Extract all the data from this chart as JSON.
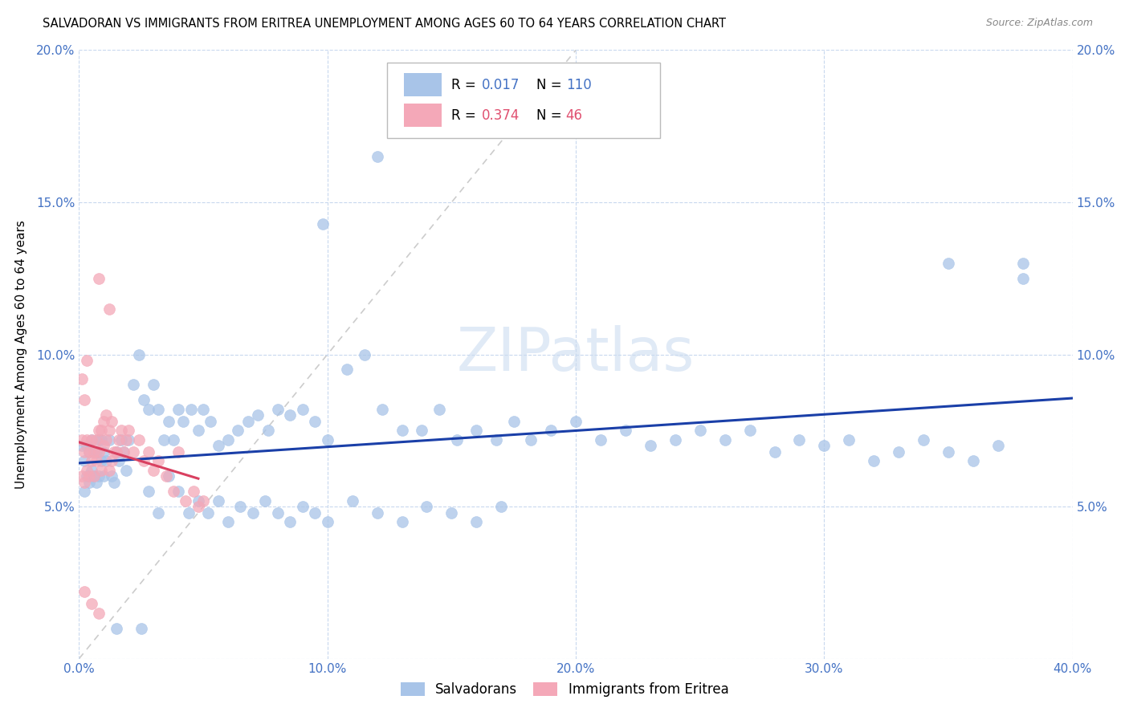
{
  "title": "SALVADORAN VS IMMIGRANTS FROM ERITREA UNEMPLOYMENT AMONG AGES 60 TO 64 YEARS CORRELATION CHART",
  "source": "Source: ZipAtlas.com",
  "ylabel": "Unemployment Among Ages 60 to 64 years",
  "xlim": [
    0.0,
    0.4
  ],
  "ylim": [
    0.0,
    0.2
  ],
  "xtick_vals": [
    0.0,
    0.1,
    0.2,
    0.3,
    0.4
  ],
  "xtick_labels": [
    "0.0%",
    "10.0%",
    "20.0%",
    "30.0%",
    "40.0%"
  ],
  "ytick_vals": [
    0.0,
    0.05,
    0.1,
    0.15,
    0.2
  ],
  "ytick_labels": [
    "",
    "5.0%",
    "10.0%",
    "15.0%",
    "20.0%"
  ],
  "salvadoran_color": "#a8c4e8",
  "eritrea_color": "#f4a8b8",
  "trend_blue_color": "#1a3fa8",
  "trend_pink_color": "#d94060",
  "diagonal_color": "#cccccc",
  "R_salvadoran": 0.017,
  "N_salvadoran": 110,
  "R_eritrea": 0.374,
  "N_eritrea": 46,
  "watermark": "ZIPatlas",
  "tick_color": "#4472c4",
  "grid_color": "#c8d8ee",
  "sal_x": [
    0.001,
    0.002,
    0.002,
    0.003,
    0.003,
    0.004,
    0.004,
    0.005,
    0.005,
    0.006,
    0.006,
    0.007,
    0.007,
    0.008,
    0.008,
    0.009,
    0.009,
    0.01,
    0.01,
    0.011,
    0.012,
    0.013,
    0.014,
    0.015,
    0.016,
    0.017,
    0.018,
    0.019,
    0.02,
    0.022,
    0.024,
    0.026,
    0.028,
    0.03,
    0.032,
    0.034,
    0.036,
    0.038,
    0.04,
    0.042,
    0.045,
    0.048,
    0.05,
    0.053,
    0.056,
    0.06,
    0.064,
    0.068,
    0.072,
    0.076,
    0.08,
    0.085,
    0.09,
    0.095,
    0.1,
    0.108,
    0.115,
    0.122,
    0.13,
    0.138,
    0.145,
    0.152,
    0.16,
    0.168,
    0.175,
    0.182,
    0.19,
    0.2,
    0.21,
    0.22,
    0.23,
    0.24,
    0.25,
    0.26,
    0.27,
    0.28,
    0.29,
    0.3,
    0.31,
    0.32,
    0.33,
    0.34,
    0.35,
    0.36,
    0.37,
    0.38,
    0.028,
    0.032,
    0.036,
    0.04,
    0.044,
    0.048,
    0.052,
    0.056,
    0.06,
    0.065,
    0.07,
    0.075,
    0.08,
    0.085,
    0.09,
    0.095,
    0.1,
    0.11,
    0.12,
    0.13,
    0.14,
    0.15,
    0.16,
    0.17
  ],
  "sal_y": [
    0.07,
    0.055,
    0.065,
    0.06,
    0.07,
    0.058,
    0.068,
    0.062,
    0.072,
    0.06,
    0.068,
    0.058,
    0.068,
    0.06,
    0.072,
    0.065,
    0.072,
    0.06,
    0.068,
    0.065,
    0.072,
    0.06,
    0.058,
    0.068,
    0.065,
    0.072,
    0.068,
    0.062,
    0.072,
    0.09,
    0.1,
    0.085,
    0.082,
    0.09,
    0.082,
    0.072,
    0.078,
    0.072,
    0.082,
    0.078,
    0.082,
    0.075,
    0.082,
    0.078,
    0.07,
    0.072,
    0.075,
    0.078,
    0.08,
    0.075,
    0.082,
    0.08,
    0.082,
    0.078,
    0.072,
    0.095,
    0.1,
    0.082,
    0.075,
    0.075,
    0.082,
    0.072,
    0.075,
    0.072,
    0.078,
    0.072,
    0.075,
    0.078,
    0.072,
    0.075,
    0.07,
    0.072,
    0.075,
    0.072,
    0.075,
    0.068,
    0.072,
    0.07,
    0.072,
    0.065,
    0.068,
    0.072,
    0.068,
    0.065,
    0.07,
    0.125,
    0.055,
    0.048,
    0.06,
    0.055,
    0.048,
    0.052,
    0.048,
    0.052,
    0.045,
    0.05,
    0.048,
    0.052,
    0.048,
    0.045,
    0.05,
    0.048,
    0.045,
    0.052,
    0.048,
    0.045,
    0.05,
    0.048,
    0.045,
    0.05
  ],
  "eri_x": [
    0.001,
    0.001,
    0.002,
    0.002,
    0.003,
    0.003,
    0.004,
    0.004,
    0.005,
    0.005,
    0.006,
    0.006,
    0.007,
    0.007,
    0.008,
    0.008,
    0.009,
    0.009,
    0.01,
    0.01,
    0.011,
    0.011,
    0.012,
    0.012,
    0.013,
    0.013,
    0.014,
    0.015,
    0.016,
    0.017,
    0.018,
    0.019,
    0.02,
    0.022,
    0.024,
    0.026,
    0.028,
    0.03,
    0.032,
    0.035,
    0.038,
    0.04,
    0.043,
    0.046,
    0.048,
    0.05
  ],
  "eri_y": [
    0.06,
    0.072,
    0.058,
    0.068,
    0.062,
    0.072,
    0.06,
    0.068,
    0.065,
    0.072,
    0.06,
    0.068,
    0.065,
    0.072,
    0.068,
    0.075,
    0.062,
    0.075,
    0.07,
    0.078,
    0.072,
    0.08,
    0.062,
    0.075,
    0.065,
    0.078,
    0.068,
    0.068,
    0.072,
    0.075,
    0.068,
    0.072,
    0.075,
    0.068,
    0.072,
    0.065,
    0.068,
    0.062,
    0.065,
    0.06,
    0.055,
    0.068,
    0.052,
    0.055,
    0.05,
    0.052
  ]
}
